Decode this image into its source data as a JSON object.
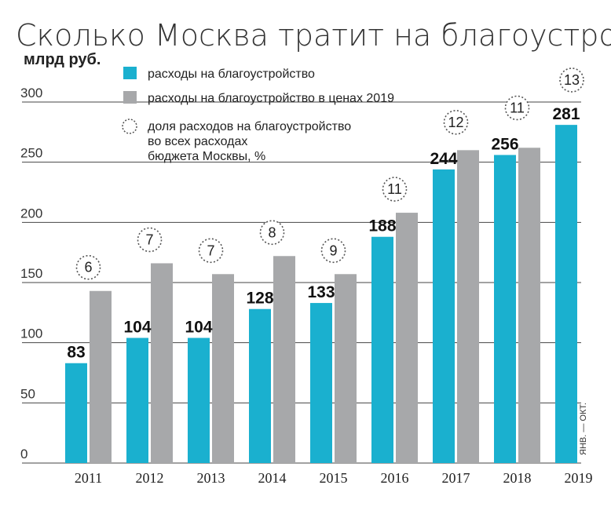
{
  "title": "Сколько Москва тратит на благоустройство",
  "unit_label": "млрд руб.",
  "side_note": "ЯНВ. — ОКТ.",
  "colors": {
    "spending": "#1ab0cf",
    "spending_2019_prices": "#a7a8aa",
    "share_circle": "#555555"
  },
  "legend": [
    "расходы на благоустройство",
    "расходы на благоустройство в ценах 2019",
    "доля расходов на благоустройство во всех расходах бюджета Москвы, %"
  ],
  "chart_data": {
    "type": "bar",
    "categories": [
      "2011",
      "2012",
      "2013",
      "2014",
      "2015",
      "2016",
      "2017",
      "2018",
      "2019"
    ],
    "series": [
      {
        "name": "расходы на благоустройство",
        "values": [
          83,
          104,
          104,
          128,
          133,
          188,
          244,
          256,
          281
        ],
        "data_labels": [
          "83",
          "104",
          "104",
          "128",
          "133",
          "188",
          "244",
          "256",
          "281"
        ]
      },
      {
        "name": "расходы на благоустройство в ценах 2019",
        "values": [
          143,
          166,
          157,
          172,
          157,
          208,
          260,
          262,
          null
        ]
      }
    ],
    "share_percent": [
      "6",
      "7",
      "7",
      "8",
      "9",
      "11",
      "12",
      "11",
      "13"
    ],
    "ylabel": "млрд руб.",
    "ylim": [
      0,
      300
    ],
    "yticks": [
      "0",
      "50",
      "100",
      "150",
      "200",
      "250",
      "300"
    ],
    "grid": true,
    "legend_position": "top-left"
  }
}
